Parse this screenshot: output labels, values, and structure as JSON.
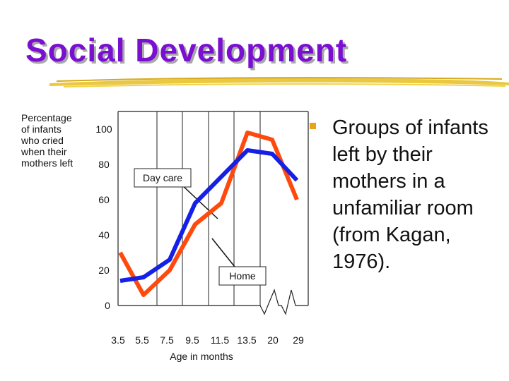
{
  "slide": {
    "title": "Social Development",
    "bullet": "Groups of infants left by their mothers in a unfamiliar room (from Kagan, 1976)."
  },
  "chart_data": {
    "type": "line",
    "title": "",
    "ylabel_lines": [
      "Percentage",
      "of infants",
      "who cried",
      "when their",
      "mothers left"
    ],
    "xlabel": "Age in months",
    "x_tick_labels": [
      "3.5",
      "5.5",
      "7.5",
      "9.5",
      "11.5",
      "13.5",
      "20",
      "29"
    ],
    "y_ticks": [
      0,
      20,
      40,
      60,
      80,
      100
    ],
    "ylim": [
      0,
      110
    ],
    "axis_break_after": "13.5",
    "grid": "vertical",
    "series": [
      {
        "name": "Day care",
        "color": "#ff4a0d",
        "points": [
          [
            3.5,
            30
          ],
          [
            5.5,
            6
          ],
          [
            7.5,
            20
          ],
          [
            9.5,
            46
          ],
          [
            11.5,
            58
          ],
          [
            13.5,
            98
          ],
          [
            20,
            94
          ],
          [
            29,
            60
          ]
        ]
      },
      {
        "name": "Home",
        "color": "#1420e6",
        "points": [
          [
            3.5,
            14
          ],
          [
            5.5,
            16
          ],
          [
            7.5,
            26
          ],
          [
            9.5,
            58
          ],
          [
            11.5,
            73
          ],
          [
            13.5,
            88
          ],
          [
            20,
            86
          ],
          [
            29,
            71
          ]
        ]
      }
    ],
    "annotations": [
      {
        "text": "Day care",
        "points_to": "Home"
      },
      {
        "text": "Home",
        "points_to": "Day care"
      }
    ]
  }
}
